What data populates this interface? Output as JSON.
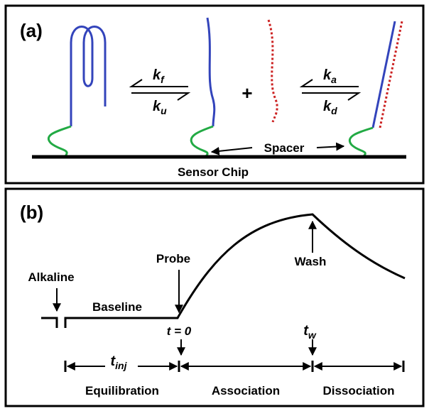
{
  "panel_a": {
    "label": "(a)",
    "rates": [
      {
        "symbol": "k",
        "subscript": "f"
      },
      {
        "symbol": "k",
        "subscript": "u"
      },
      {
        "symbol": "k",
        "subscript": "a"
      },
      {
        "symbol": "k",
        "subscript": "d"
      }
    ],
    "plus": "+",
    "spacer": "Spacer",
    "sensor_chip": "Sensor Chip"
  },
  "panel_b": {
    "label": "(b)",
    "alkaline": "Alkaline",
    "baseline": "Baseline",
    "probe": "Probe",
    "wash": "Wash",
    "t_zero": "t = 0",
    "t_wash": {
      "symbol": "t",
      "subscript": "w"
    },
    "t_inj": {
      "symbol": "t",
      "subscript": "inj"
    },
    "phases": [
      "Equilibration",
      "Association",
      "Dissociation"
    ]
  }
}
